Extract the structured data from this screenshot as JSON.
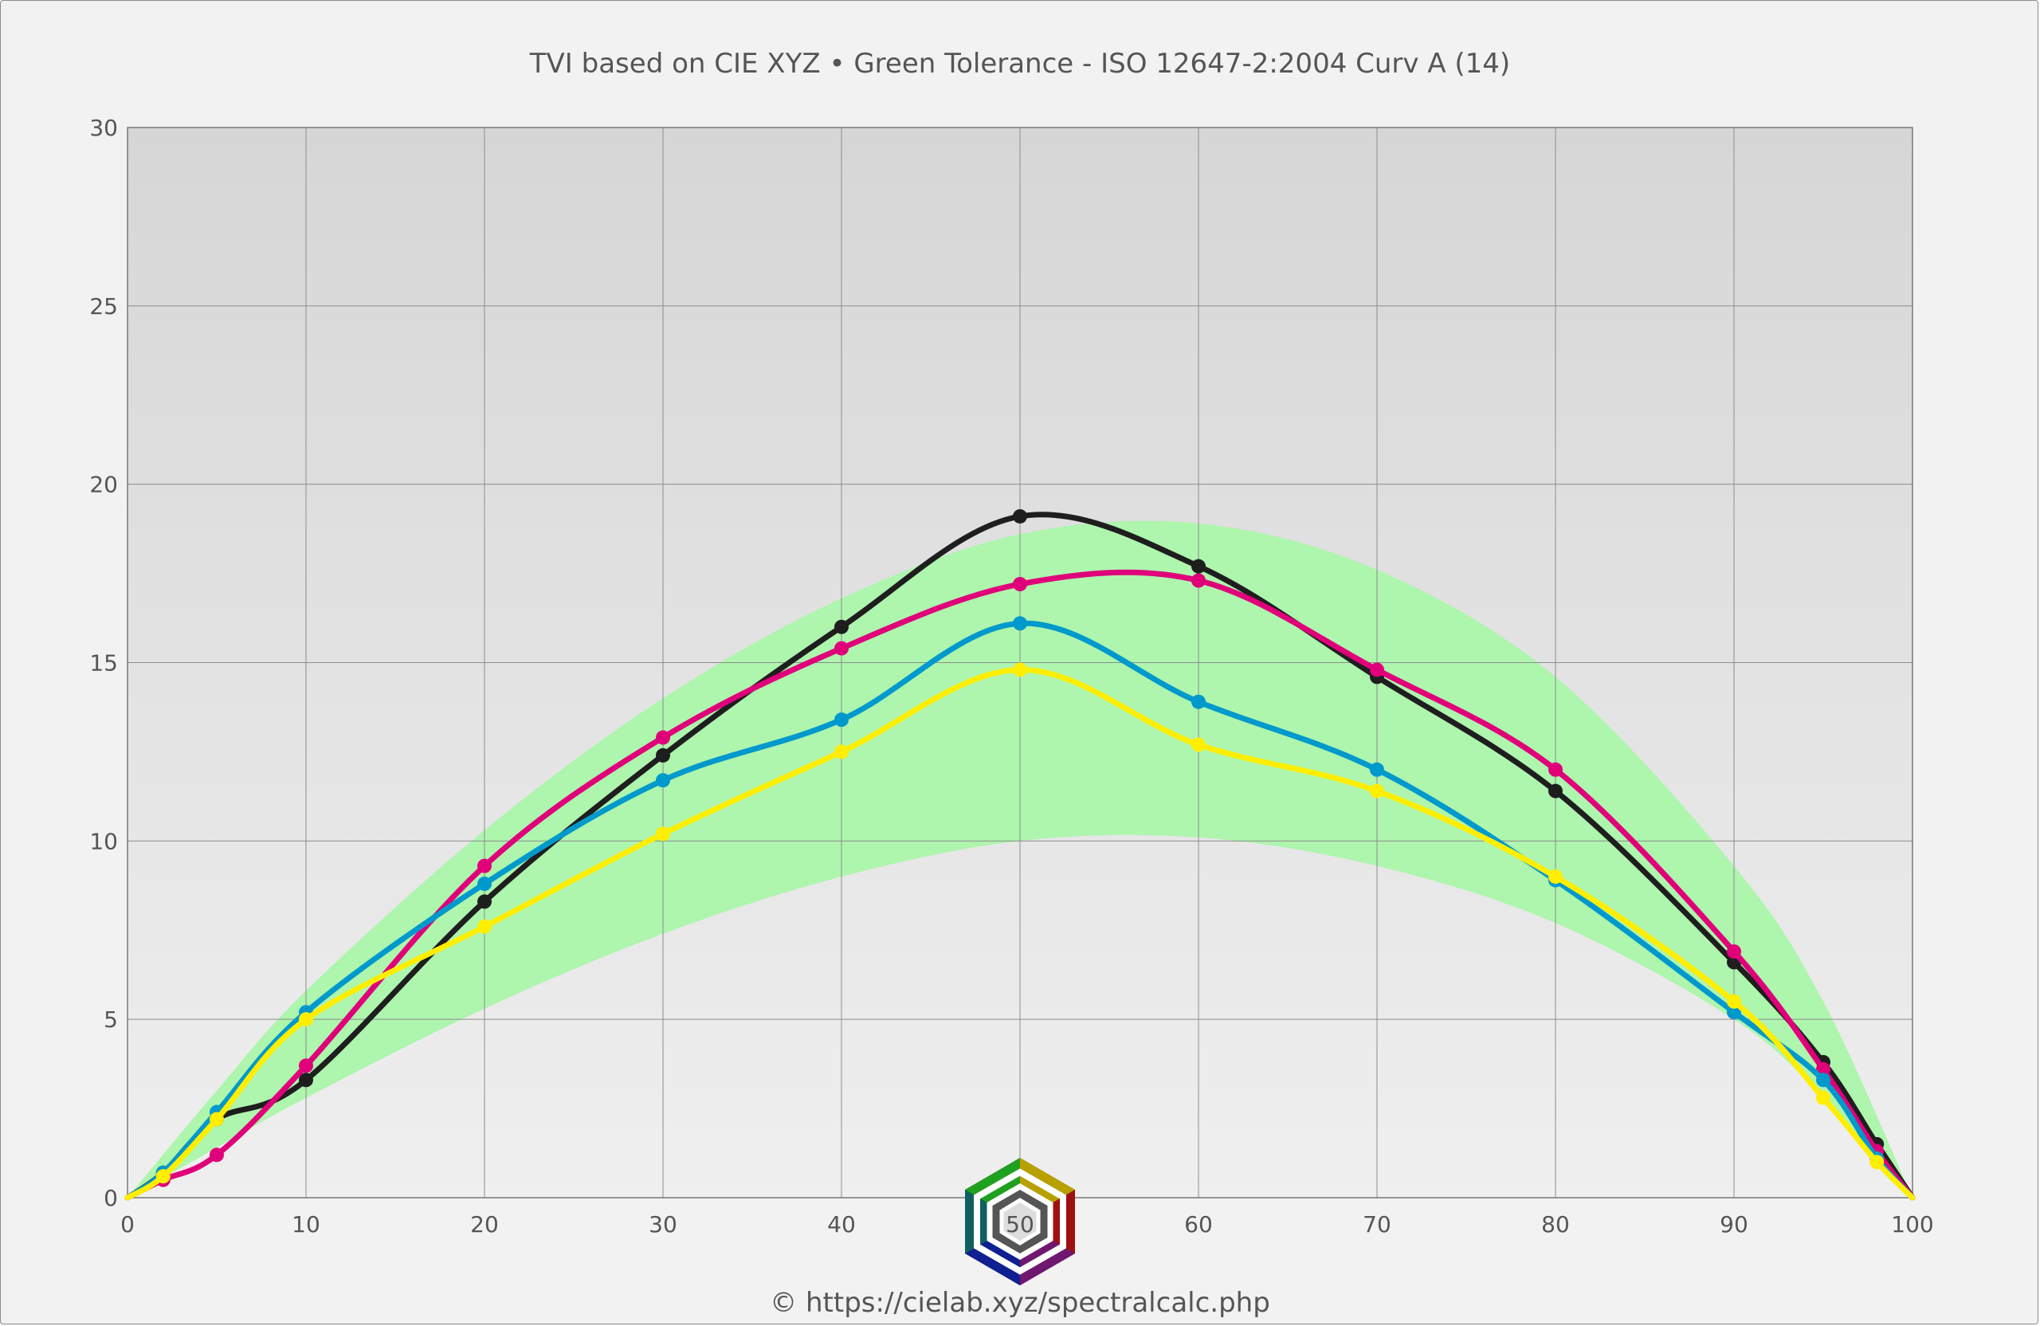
{
  "chart_data": {
    "type": "line",
    "title": "TVI based on CIE XYZ  •  Green Tolerance - ISO 12647-2:2004 Curv A (14)",
    "xlim": [
      0,
      100
    ],
    "ylim": [
      0,
      30
    ],
    "x_ticks": [
      0,
      10,
      20,
      30,
      40,
      50,
      60,
      70,
      80,
      90,
      100
    ],
    "y_ticks": [
      0,
      5,
      10,
      15,
      20,
      25,
      30
    ],
    "grid": true,
    "tolerance_band": {
      "x": [
        0,
        5,
        10,
        20,
        30,
        40,
        50,
        60,
        70,
        80,
        90,
        95,
        100
      ],
      "lower": [
        0,
        1.4,
        2.8,
        5.3,
        7.4,
        9.0,
        10.0,
        10.1,
        9.3,
        7.7,
        5.0,
        2.8,
        0
      ],
      "upper": [
        0,
        3.0,
        5.8,
        10.3,
        14.0,
        16.8,
        18.6,
        18.9,
        17.6,
        14.6,
        9.3,
        5.5,
        0
      ],
      "color": "#aef5ae"
    },
    "series": [
      {
        "color": "#1e1e1e",
        "x": [
          0,
          2,
          5,
          10,
          20,
          30,
          40,
          50,
          60,
          70,
          80,
          90,
          95,
          98,
          100
        ],
        "y": [
          0,
          0.7,
          2.2,
          3.3,
          8.3,
          12.4,
          16.0,
          19.1,
          17.7,
          14.6,
          11.4,
          6.6,
          3.8,
          1.5,
          0
        ]
      },
      {
        "color": "#e0007a",
        "x": [
          0,
          2,
          5,
          10,
          20,
          30,
          40,
          50,
          60,
          70,
          80,
          90,
          95,
          98,
          100
        ],
        "y": [
          0,
          0.5,
          1.2,
          3.7,
          9.3,
          12.9,
          15.4,
          17.2,
          17.3,
          14.8,
          12.0,
          6.9,
          3.6,
          1.3,
          0
        ]
      },
      {
        "color": "#0099cc",
        "x": [
          0,
          2,
          5,
          10,
          20,
          30,
          40,
          50,
          60,
          70,
          80,
          90,
          95,
          98,
          100
        ],
        "y": [
          0,
          0.7,
          2.4,
          5.2,
          8.8,
          11.7,
          13.4,
          16.1,
          13.9,
          12.0,
          8.9,
          5.2,
          3.3,
          1.1,
          0
        ]
      },
      {
        "color": "#ffee00",
        "x": [
          0,
          2,
          5,
          10,
          20,
          30,
          40,
          50,
          60,
          70,
          80,
          90,
          95,
          98,
          100
        ],
        "y": [
          0,
          0.6,
          2.2,
          5.0,
          7.6,
          10.2,
          12.5,
          14.8,
          12.7,
          11.4,
          9.0,
          5.5,
          2.8,
          1.0,
          0
        ]
      }
    ]
  },
  "footer": {
    "url": "© https://cielab.xyz/spectralcalc.php"
  },
  "logo": {
    "label": "50",
    "icon": "hexagon-logo-icon"
  }
}
